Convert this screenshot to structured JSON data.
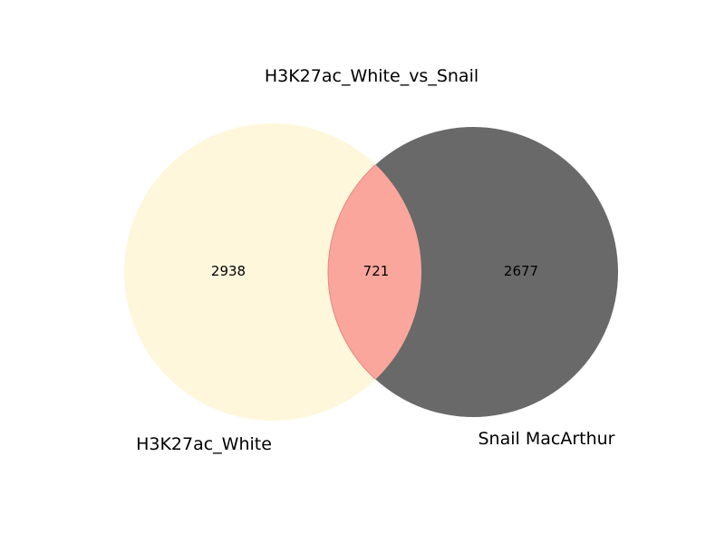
{
  "chart_data": {
    "type": "venn",
    "title": "H3K27ac_White_vs_Snail",
    "sets": [
      {
        "name": "H3K27ac_White",
        "color": "#fff7dc"
      },
      {
        "name": "Snail MacArthur",
        "color": "#696969"
      }
    ],
    "counts": {
      "only_a": "2938",
      "intersection": "721",
      "only_b": "2677"
    },
    "intersection_color": "#faa69c"
  }
}
